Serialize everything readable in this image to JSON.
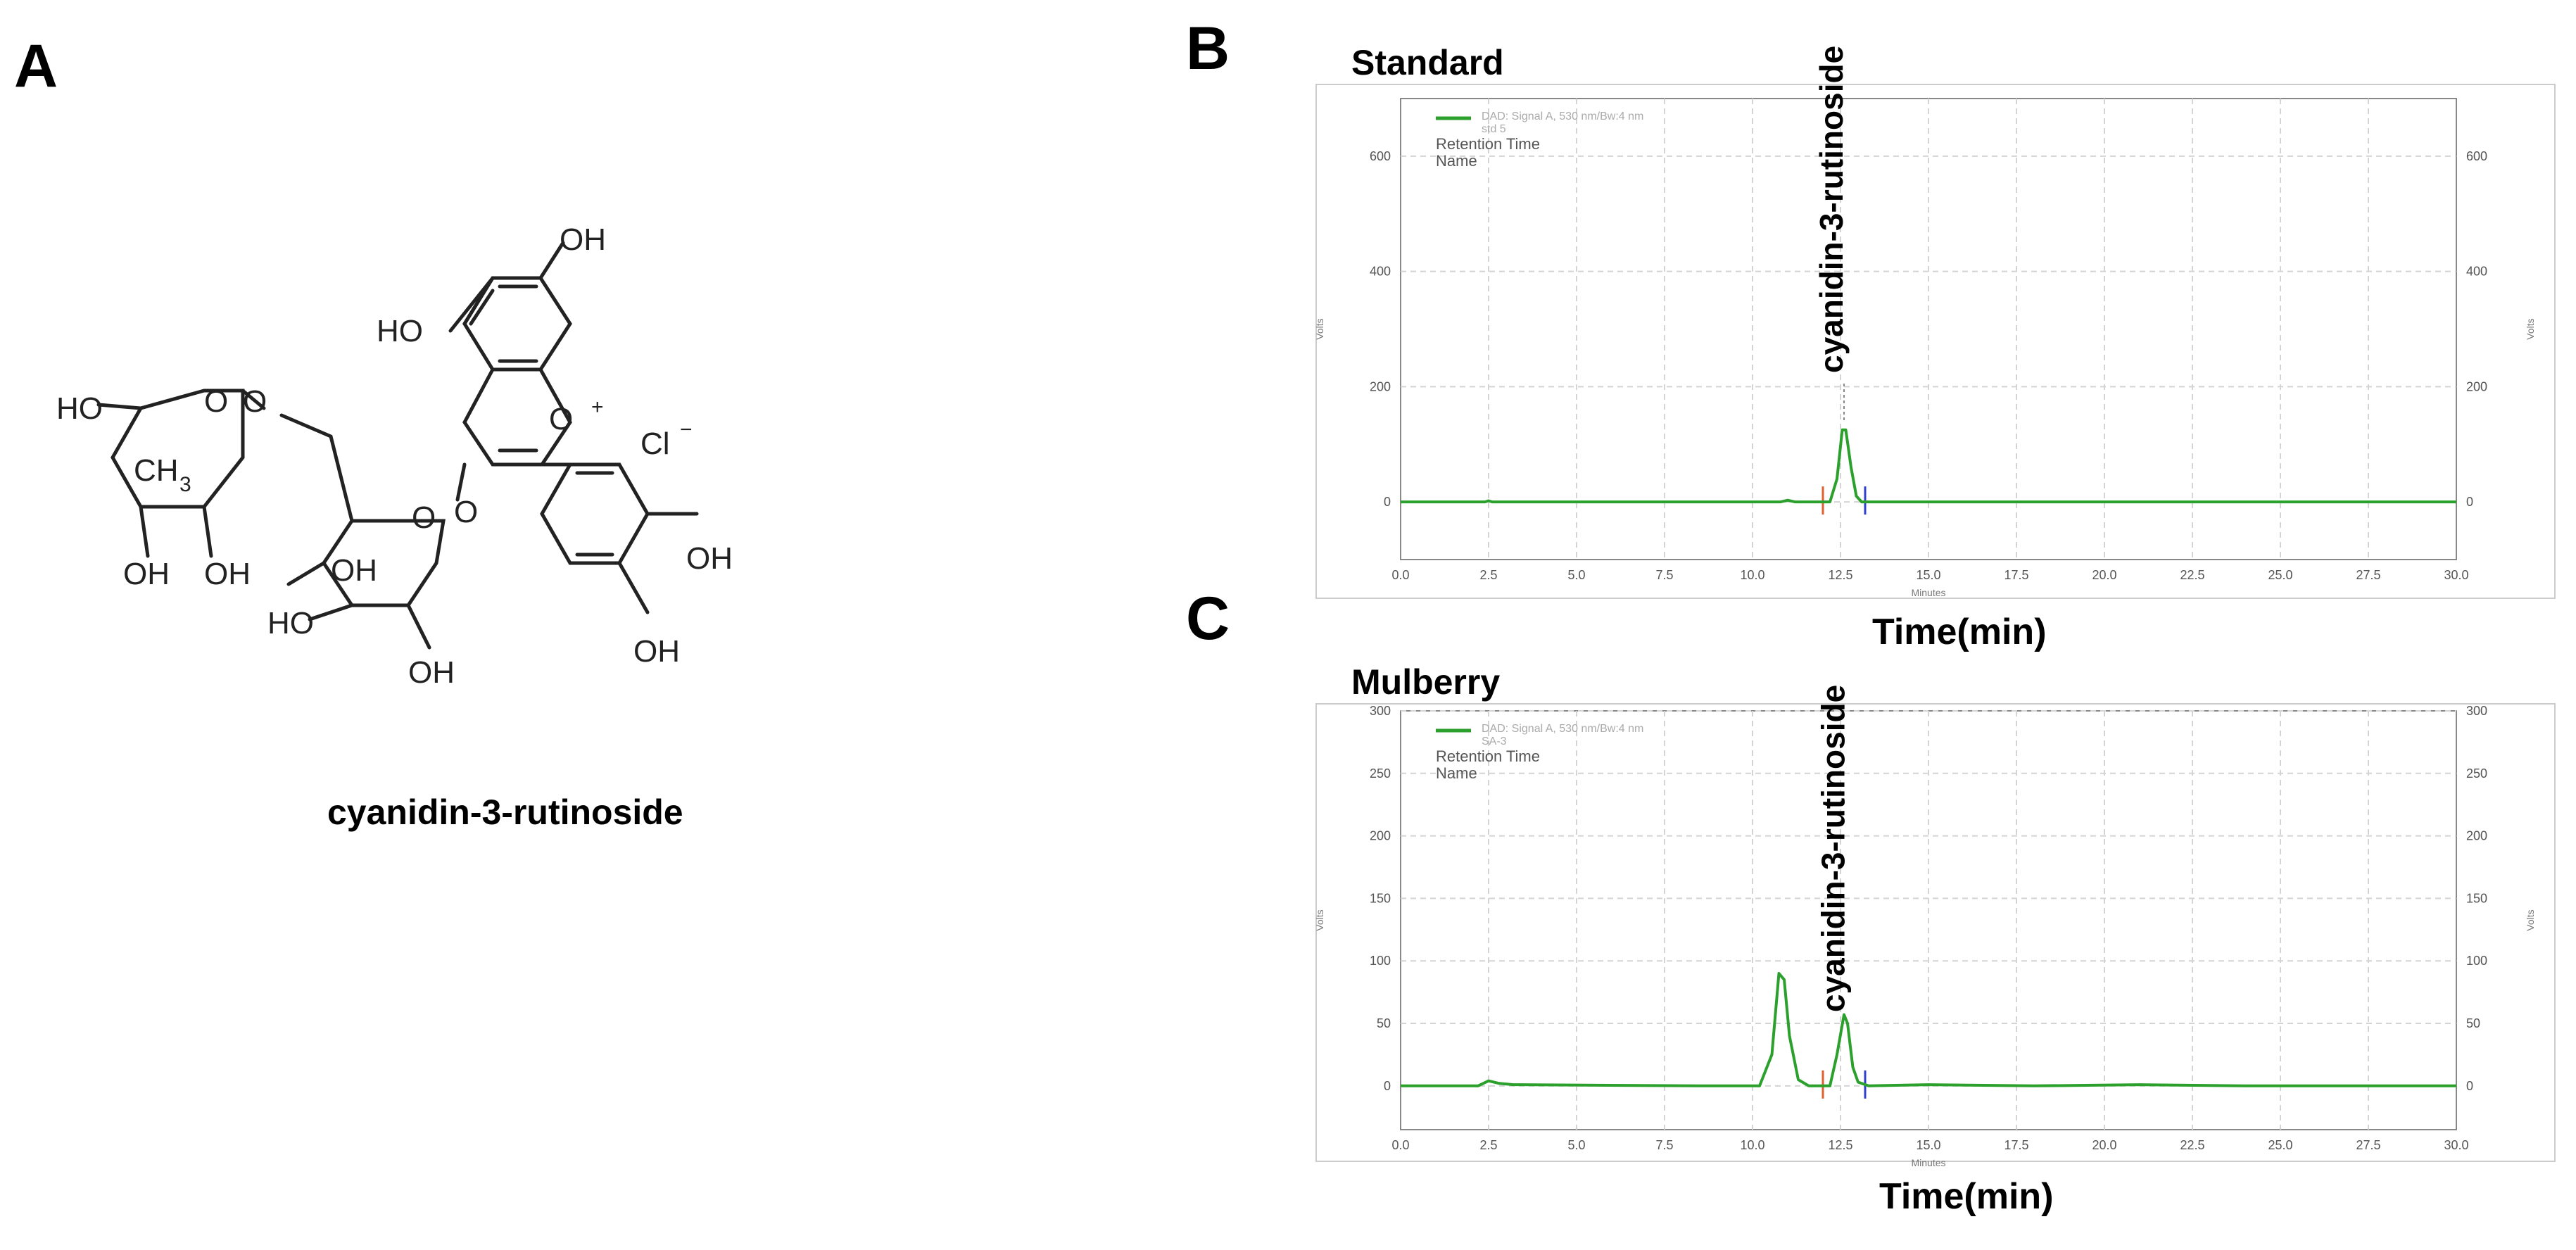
{
  "panels": {
    "a_label": "A",
    "b_label": "B",
    "c_label": "C"
  },
  "structure": {
    "caption": "cyanidin-3-rutinoside",
    "atom_labels": [
      "OH",
      "HO",
      "OH",
      "O",
      "O",
      "+",
      "Cl",
      "−",
      "HO",
      "O",
      "CH",
      "3",
      "OH",
      "OH",
      "OH",
      "O",
      "O",
      "HO",
      "OH",
      "OH",
      "OH"
    ]
  },
  "chart_data": [
    {
      "type": "line",
      "title": "Standard",
      "xlabel": "Time(min)",
      "axis_unit_x": "Minutes",
      "ylabel": "Volts",
      "xlim": [
        0,
        30
      ],
      "ylim": [
        -100,
        700
      ],
      "x_ticks": [
        "0.0",
        "2.5",
        "5.0",
        "7.5",
        "10.0",
        "12.5",
        "15.0",
        "17.5",
        "20.0",
        "22.5",
        "25.0",
        "27.5",
        "30.0"
      ],
      "y_ticks": [
        "0",
        "200",
        "400",
        "600"
      ],
      "legend": [
        "DAD: Signal A, 530 nm/Bw:4 nm",
        "std 5",
        "Retention Time",
        "Name"
      ],
      "peak_label": "cyanidin-3-rutinoside",
      "series": [
        {
          "name": "DAD: Signal A, 530 nm/Bw:4 nm",
          "color": "#2ca02c",
          "x": [
            0,
            2.4,
            2.5,
            2.6,
            10.8,
            11.0,
            11.2,
            12.2,
            12.4,
            12.55,
            12.65,
            12.8,
            12.95,
            13.1,
            13.4,
            30
          ],
          "y": [
            0,
            0,
            2,
            0,
            0,
            3,
            0,
            0,
            40,
            125,
            125,
            60,
            10,
            0,
            0,
            0
          ]
        }
      ],
      "markers": [
        {
          "x": 12.0,
          "color": "#e06030"
        },
        {
          "x": 13.2,
          "color": "#3040d0"
        }
      ]
    },
    {
      "type": "line",
      "title": "Mulberry",
      "xlabel": "Time(min)",
      "axis_unit_x": "Minutes",
      "ylabel": "Volts",
      "xlim": [
        0,
        30
      ],
      "ylim": [
        -35,
        300
      ],
      "x_ticks": [
        "0.0",
        "2.5",
        "5.0",
        "7.5",
        "10.0",
        "12.5",
        "15.0",
        "17.5",
        "20.0",
        "22.5",
        "25.0",
        "27.5",
        "30.0"
      ],
      "y_ticks": [
        "0",
        "50",
        "100",
        "150",
        "200",
        "250",
        "300"
      ],
      "legend": [
        "DAD: Signal A, 530 nm/Bw:4 nm",
        "SA-3",
        "Retention Time",
        "Name"
      ],
      "peak_label": "cyanidin-3-rutinoside",
      "series": [
        {
          "name": "DAD: Signal A, 530 nm/Bw:4 nm",
          "color": "#2ca02c",
          "x": [
            0,
            2.2,
            2.5,
            2.8,
            3.2,
            8.5,
            10.2,
            10.55,
            10.75,
            10.9,
            11.05,
            11.3,
            11.6,
            12.2,
            12.4,
            12.6,
            12.7,
            12.85,
            13.0,
            13.3,
            15.0,
            18.0,
            21.0,
            24.0,
            30.0
          ],
          "y": [
            0,
            0,
            4,
            2,
            1,
            0,
            0,
            25,
            90,
            85,
            40,
            5,
            0,
            0,
            25,
            57,
            50,
            15,
            3,
            0,
            1,
            0,
            1,
            0,
            0
          ]
        }
      ],
      "markers": [
        {
          "x": 12.0,
          "color": "#e06030"
        },
        {
          "x": 13.2,
          "color": "#3040d0"
        }
      ]
    }
  ]
}
